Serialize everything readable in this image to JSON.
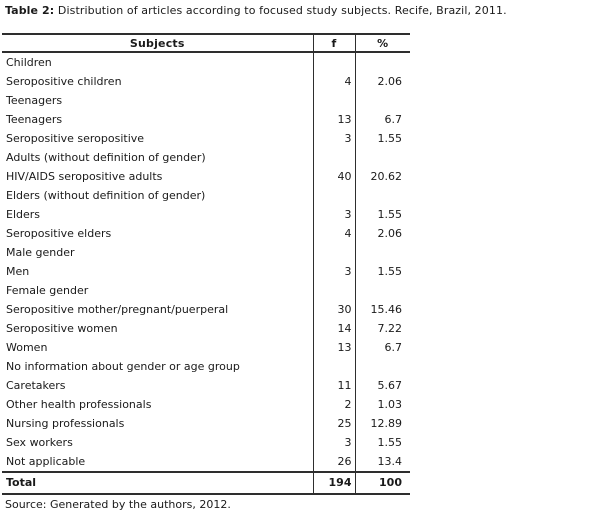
{
  "title": {
    "label": "Table 2:",
    "text": "Distribution of articles according to focused study subjects. Recife, Brazil, 2011."
  },
  "table": {
    "headers": [
      "Subjects",
      "f",
      "%"
    ],
    "rows": [
      {
        "subject": "Children",
        "f": "",
        "pct": ""
      },
      {
        "subject": "Seropositive children",
        "f": "4",
        "pct": "2.06"
      },
      {
        "subject": "Teenagers",
        "f": "",
        "pct": ""
      },
      {
        "subject": "Teenagers",
        "f": "13",
        "pct": "6.7"
      },
      {
        "subject": "Seropositive seropositive",
        "f": "3",
        "pct": "1.55"
      },
      {
        "subject": "Adults (without definition of gender)",
        "f": "",
        "pct": ""
      },
      {
        "subject": "HIV/AIDS seropositive adults",
        "f": "40",
        "pct": "20.62"
      },
      {
        "subject": "Elders (without definition of gender)",
        "f": "",
        "pct": ""
      },
      {
        "subject": "Elders",
        "f": "3",
        "pct": "1.55"
      },
      {
        "subject": "Seropositive elders",
        "f": "4",
        "pct": "2.06"
      },
      {
        "subject": "Male gender",
        "f": "",
        "pct": ""
      },
      {
        "subject": "Men",
        "f": "3",
        "pct": "1.55"
      },
      {
        "subject": "Female gender",
        "f": "",
        "pct": ""
      },
      {
        "subject": "Seropositive mother/pregnant/puerperal",
        "f": "30",
        "pct": "15.46"
      },
      {
        "subject": "Seropositive women",
        "f": "14",
        "pct": "7.22"
      },
      {
        "subject": "Women",
        "f": "13",
        "pct": "6.7"
      },
      {
        "subject": "No information about gender or age group",
        "f": "",
        "pct": ""
      },
      {
        "subject": "Caretakers",
        "f": "11",
        "pct": "5.67"
      },
      {
        "subject": "Other health professionals",
        "f": "2",
        "pct": "1.03"
      },
      {
        "subject": "Nursing professionals",
        "f": "25",
        "pct": "12.89"
      },
      {
        "subject": "Sex workers",
        "f": "3",
        "pct": "1.55"
      },
      {
        "subject": "Not applicable",
        "f": "26",
        "pct": "13.4"
      }
    ],
    "total": {
      "subject": "Total",
      "f": "194",
      "pct": "100"
    }
  },
  "source": "Source: Generated by the authors, 2012."
}
